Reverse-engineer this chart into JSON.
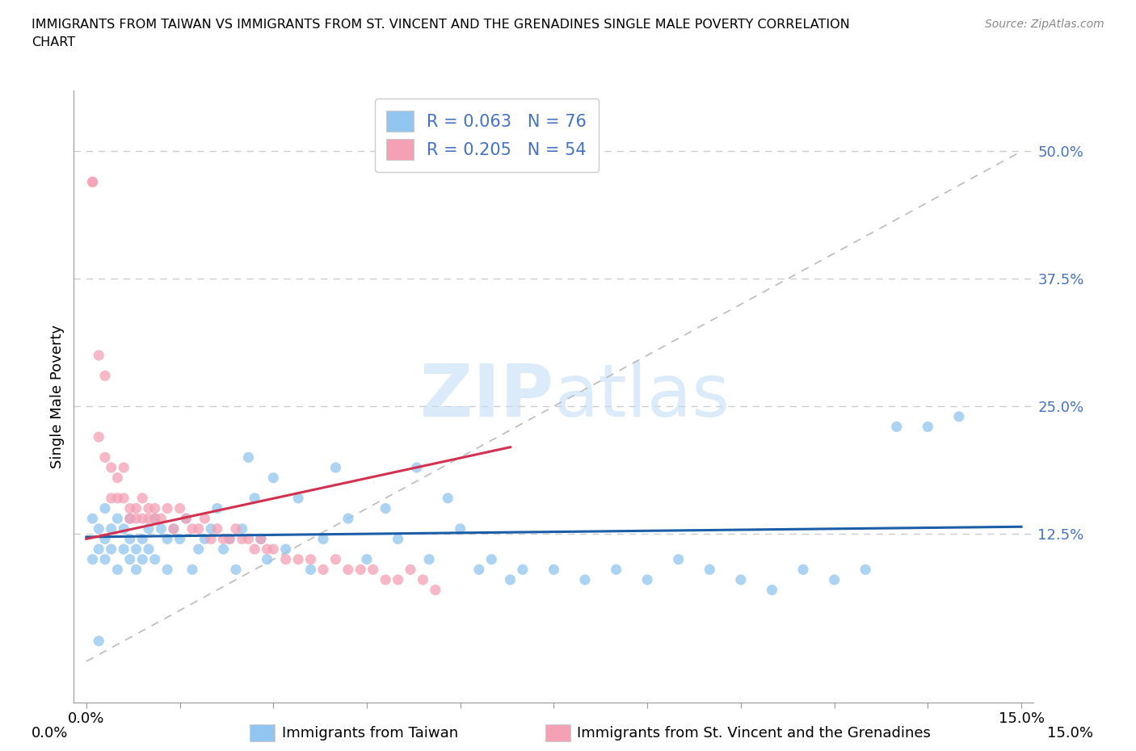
{
  "title_line1": "IMMIGRANTS FROM TAIWAN VS IMMIGRANTS FROM ST. VINCENT AND THE GRENADINES SINGLE MALE POVERTY CORRELATION",
  "title_line2": "CHART",
  "source": "Source: ZipAtlas.com",
  "ylabel": "Single Male Poverty",
  "x_label_taiwan": "Immigrants from Taiwan",
  "x_label_svg": "Immigrants from St. Vincent and the Grenadines",
  "xlim": [
    -0.002,
    0.152
  ],
  "ylim": [
    -0.04,
    0.56
  ],
  "R_taiwan": 0.063,
  "N_taiwan": 76,
  "R_svg": 0.205,
  "N_svg": 54,
  "color_taiwan": "#92C5F0",
  "color_svg": "#F4A0B5",
  "trend_color_taiwan": "#1A5EA8",
  "trend_color_svg": "#D43050",
  "tick_label_color": "#4472C4",
  "watermark_color": "#C5DFF5",
  "taiwan_x": [
    0.001,
    0.001,
    0.002,
    0.002,
    0.003,
    0.003,
    0.003,
    0.004,
    0.004,
    0.005,
    0.005,
    0.006,
    0.006,
    0.007,
    0.007,
    0.007,
    0.008,
    0.008,
    0.009,
    0.009,
    0.01,
    0.01,
    0.011,
    0.011,
    0.012,
    0.013,
    0.013,
    0.014,
    0.015,
    0.016,
    0.017,
    0.018,
    0.019,
    0.02,
    0.021,
    0.022,
    0.023,
    0.024,
    0.025,
    0.026,
    0.027,
    0.028,
    0.029,
    0.03,
    0.032,
    0.034,
    0.036,
    0.038,
    0.04,
    0.042,
    0.045,
    0.048,
    0.05,
    0.053,
    0.055,
    0.058,
    0.06,
    0.063,
    0.065,
    0.068,
    0.07,
    0.075,
    0.08,
    0.085,
    0.09,
    0.095,
    0.1,
    0.105,
    0.11,
    0.115,
    0.12,
    0.125,
    0.13,
    0.135,
    0.14,
    0.002
  ],
  "taiwan_y": [
    0.14,
    0.1,
    0.13,
    0.11,
    0.15,
    0.12,
    0.1,
    0.13,
    0.11,
    0.14,
    0.09,
    0.13,
    0.11,
    0.12,
    0.1,
    0.14,
    0.09,
    0.11,
    0.12,
    0.1,
    0.13,
    0.11,
    0.14,
    0.1,
    0.13,
    0.12,
    0.09,
    0.13,
    0.12,
    0.14,
    0.09,
    0.11,
    0.12,
    0.13,
    0.15,
    0.11,
    0.12,
    0.09,
    0.13,
    0.2,
    0.16,
    0.12,
    0.1,
    0.18,
    0.11,
    0.16,
    0.09,
    0.12,
    0.19,
    0.14,
    0.1,
    0.15,
    0.12,
    0.19,
    0.1,
    0.16,
    0.13,
    0.09,
    0.1,
    0.08,
    0.09,
    0.09,
    0.08,
    0.09,
    0.08,
    0.1,
    0.09,
    0.08,
    0.07,
    0.09,
    0.08,
    0.09,
    0.23,
    0.23,
    0.24,
    0.02
  ],
  "svg_x": [
    0.001,
    0.002,
    0.002,
    0.003,
    0.003,
    0.004,
    0.004,
    0.005,
    0.005,
    0.006,
    0.006,
    0.007,
    0.007,
    0.008,
    0.008,
    0.009,
    0.009,
    0.01,
    0.01,
    0.011,
    0.011,
    0.012,
    0.013,
    0.014,
    0.015,
    0.016,
    0.017,
    0.018,
    0.019,
    0.02,
    0.021,
    0.022,
    0.023,
    0.024,
    0.025,
    0.026,
    0.027,
    0.028,
    0.029,
    0.03,
    0.032,
    0.034,
    0.036,
    0.038,
    0.04,
    0.042,
    0.044,
    0.046,
    0.048,
    0.05,
    0.052,
    0.054,
    0.056,
    0.001
  ],
  "svg_y": [
    0.47,
    0.3,
    0.22,
    0.28,
    0.2,
    0.19,
    0.16,
    0.18,
    0.16,
    0.19,
    0.16,
    0.15,
    0.14,
    0.15,
    0.14,
    0.16,
    0.14,
    0.15,
    0.14,
    0.15,
    0.14,
    0.14,
    0.15,
    0.13,
    0.15,
    0.14,
    0.13,
    0.13,
    0.14,
    0.12,
    0.13,
    0.12,
    0.12,
    0.13,
    0.12,
    0.12,
    0.11,
    0.12,
    0.11,
    0.11,
    0.1,
    0.1,
    0.1,
    0.09,
    0.1,
    0.09,
    0.09,
    0.09,
    0.08,
    0.08,
    0.09,
    0.08,
    0.07,
    0.47
  ]
}
